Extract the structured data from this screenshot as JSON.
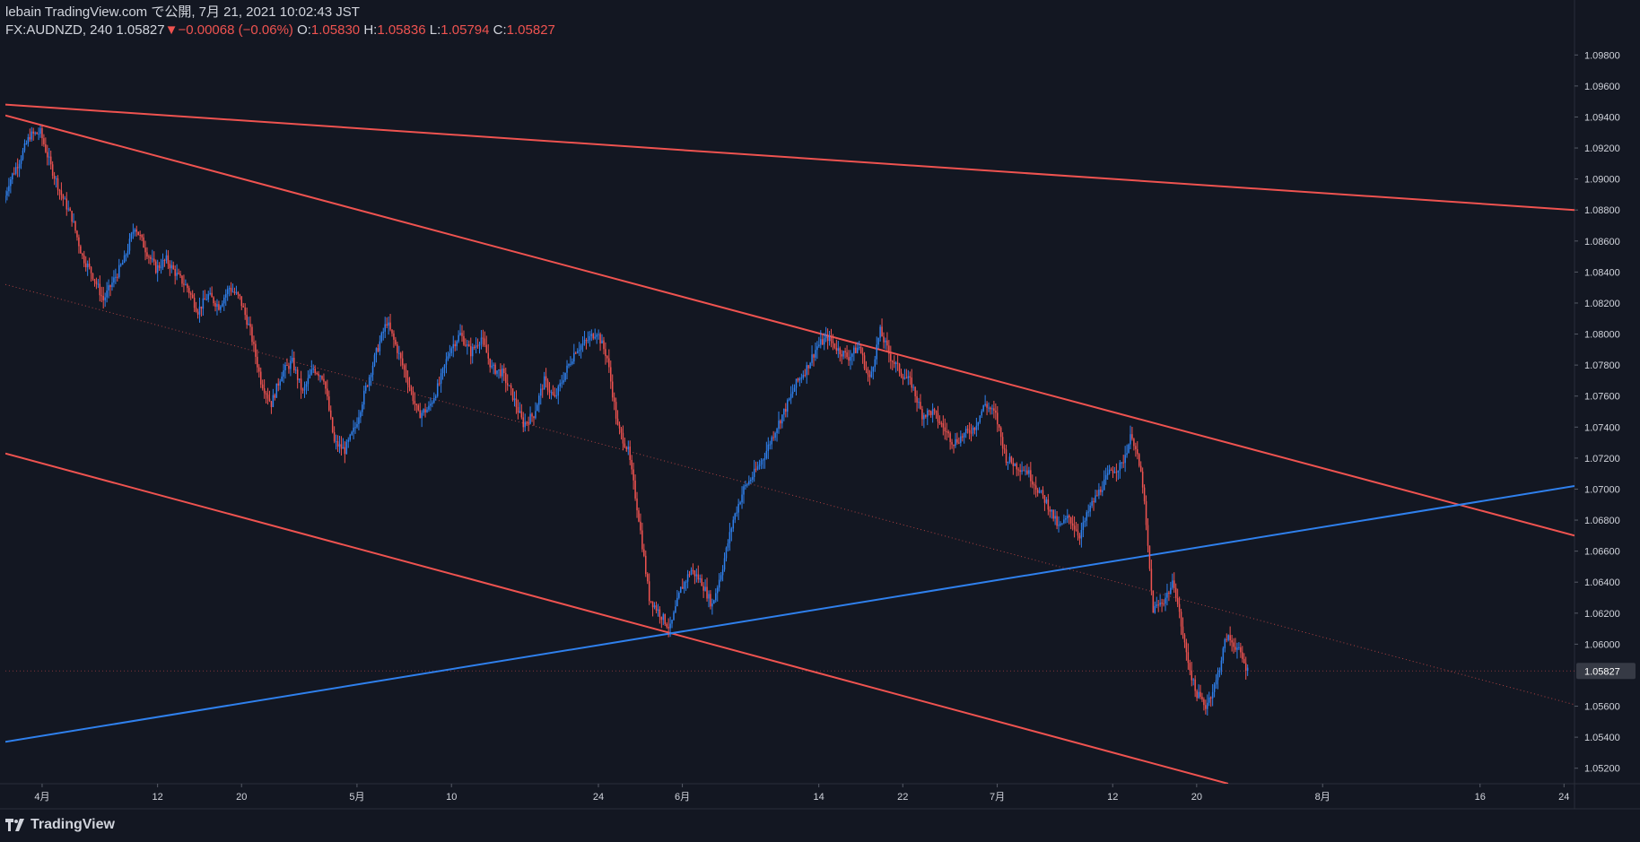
{
  "header": {
    "published": "lebain TradingView.com で公開, 7月 21, 2021 10:02:43 JST",
    "symbol": "FX:AUDNZD, 240",
    "last": "1.05827",
    "arrow": "▼",
    "change": "−0.00068 (−0.06%)",
    "o_label": "O:",
    "o_value": "1.05830",
    "h_label": "H:",
    "h_value": "1.05836",
    "l_label": "L:",
    "l_value": "1.05794",
    "c_label": "C:",
    "c_value": "1.05827"
  },
  "footer": {
    "brand": "TradingView"
  },
  "colors": {
    "background": "#131722",
    "up": "#2f80ed",
    "down": "#ef5350",
    "trendline_red": "#ef5350",
    "trendline_blue": "#2f80ed",
    "text": "#d1d4dc",
    "price_tag_bg": "#363a45"
  },
  "chart_data": {
    "type": "candlestick",
    "symbol": "FX:AUDNZD",
    "interval": "240",
    "y_axis": {
      "min": 1.051,
      "max": 1.099,
      "ticks": [
        "1.09800",
        "1.09600",
        "1.09400",
        "1.09200",
        "1.09000",
        "1.08800",
        "1.08600",
        "1.08400",
        "1.08200",
        "1.08000",
        "1.07800",
        "1.07600",
        "1.07400",
        "1.07200",
        "1.07000",
        "1.06800",
        "1.06600",
        "1.06400",
        "1.06200",
        "1.06000",
        "1.05600",
        "1.05400",
        "1.05200"
      ],
      "current_price_label": "1.05827",
      "current_price": 1.05827
    },
    "x_axis": {
      "range_days": [
        -3.5,
        146
      ],
      "ticks": [
        {
          "label": "4月",
          "day": 0
        },
        {
          "label": "12",
          "day": 11
        },
        {
          "label": "20",
          "day": 19
        },
        {
          "label": "5月",
          "day": 30
        },
        {
          "label": "10",
          "day": 39
        },
        {
          "label": "24",
          "day": 53
        },
        {
          "label": "6月",
          "day": 61
        },
        {
          "label": "14",
          "day": 74
        },
        {
          "label": "22",
          "day": 82
        },
        {
          "label": "7月",
          "day": 91
        },
        {
          "label": "12",
          "day": 102
        },
        {
          "label": "20",
          "day": 110
        },
        {
          "label": "8月",
          "day": 122
        },
        {
          "label": "16",
          "day": 137
        },
        {
          "label": "24",
          "day": 145
        }
      ]
    },
    "price_path": [
      [
        -3.5,
        1.0885
      ],
      [
        -3,
        1.0898
      ],
      [
        -2,
        1.0912
      ],
      [
        -1,
        1.0928
      ],
      [
        0,
        1.093
      ],
      [
        1,
        1.0908
      ],
      [
        2,
        1.089
      ],
      [
        3,
        1.0875
      ],
      [
        4,
        1.085
      ],
      [
        5,
        1.0838
      ],
      [
        6,
        1.0822
      ],
      [
        7,
        1.0835
      ],
      [
        8,
        1.0848
      ],
      [
        9,
        1.087
      ],
      [
        10,
        1.0855
      ],
      [
        11,
        1.0842
      ],
      [
        12,
        1.0848
      ],
      [
        13,
        1.0838
      ],
      [
        14,
        1.083
      ],
      [
        15,
        1.0815
      ],
      [
        16,
        1.0825
      ],
      [
        17,
        1.0818
      ],
      [
        18,
        1.083
      ],
      [
        19,
        1.0823
      ],
      [
        20,
        1.0802
      ],
      [
        21,
        1.077
      ],
      [
        22,
        1.0755
      ],
      [
        23,
        1.0775
      ],
      [
        24,
        1.0782
      ],
      [
        25,
        1.0762
      ],
      [
        26,
        1.0778
      ],
      [
        27,
        1.0772
      ],
      [
        28,
        1.073
      ],
      [
        29,
        1.0725
      ],
      [
        30,
        1.074
      ],
      [
        31,
        1.0765
      ],
      [
        32,
        1.0788
      ],
      [
        33,
        1.0808
      ],
      [
        34,
        1.079
      ],
      [
        35,
        1.077
      ],
      [
        36,
        1.0748
      ],
      [
        37,
        1.0752
      ],
      [
        38,
        1.0768
      ],
      [
        39,
        1.079
      ],
      [
        40,
        1.08
      ],
      [
        41,
        1.0788
      ],
      [
        42,
        1.0798
      ],
      [
        43,
        1.0778
      ],
      [
        44,
        1.0775
      ],
      [
        45,
        1.076
      ],
      [
        46,
        1.0742
      ],
      [
        47,
        1.0748
      ],
      [
        48,
        1.077
      ],
      [
        49,
        1.0758
      ],
      [
        50,
        1.0775
      ],
      [
        51,
        1.079
      ],
      [
        52,
        1.0795
      ],
      [
        53,
        1.0802
      ],
      [
        54,
        1.0785
      ],
      [
        55,
        1.074
      ],
      [
        56,
        1.0725
      ],
      [
        57,
        1.0682
      ],
      [
        58,
        1.063
      ],
      [
        59,
        1.062
      ],
      [
        60,
        1.061
      ],
      [
        61,
        1.0635
      ],
      [
        62,
        1.0648
      ],
      [
        63,
        1.064
      ],
      [
        64,
        1.0625
      ],
      [
        65,
        1.065
      ],
      [
        66,
        1.068
      ],
      [
        67,
        1.07
      ],
      [
        68,
        1.071
      ],
      [
        69,
        1.0722
      ],
      [
        70,
        1.0738
      ],
      [
        71,
        1.0752
      ],
      [
        72,
        1.0768
      ],
      [
        73,
        1.0778
      ],
      [
        74,
        1.0792
      ],
      [
        75,
        1.0798
      ],
      [
        76,
        1.079
      ],
      [
        77,
        1.0785
      ],
      [
        78,
        1.0792
      ],
      [
        79,
        1.077
      ],
      [
        80,
        1.0802
      ],
      [
        81,
        1.0785
      ],
      [
        82,
        1.0775
      ],
      [
        83,
        1.0768
      ],
      [
        84,
        1.0748
      ],
      [
        85,
        1.075
      ],
      [
        86,
        1.074
      ],
      [
        87,
        1.073
      ],
      [
        88,
        1.0735
      ],
      [
        89,
        1.074
      ],
      [
        90,
        1.0755
      ],
      [
        91,
        1.0748
      ],
      [
        92,
        1.072
      ],
      [
        93,
        1.0715
      ],
      [
        94,
        1.0712
      ],
      [
        95,
        1.07
      ],
      [
        96,
        1.069
      ],
      [
        97,
        1.0675
      ],
      [
        98,
        1.0682
      ],
      [
        99,
        1.067
      ],
      [
        100,
        1.0688
      ],
      [
        101,
        1.07
      ],
      [
        102,
        1.0712
      ],
      [
        103,
        1.0715
      ],
      [
        104,
        1.0736
      ],
      [
        105,
        1.0705
      ],
      [
        106,
        1.0622
      ],
      [
        107,
        1.0628
      ],
      [
        108,
        1.064
      ],
      [
        109,
        1.06
      ],
      [
        110,
        1.057
      ],
      [
        111,
        1.056
      ],
      [
        112,
        1.0575
      ],
      [
        113,
        1.0605
      ],
      [
        114,
        1.0598
      ],
      [
        115,
        1.0583
      ]
    ],
    "trendlines": [
      {
        "color": "red",
        "style": "solid",
        "points": [
          [
            -3.5,
            1.0948
          ],
          [
            146,
            1.088
          ]
        ]
      },
      {
        "color": "red",
        "style": "solid",
        "points": [
          [
            -3.5,
            1.0941
          ],
          [
            146,
            1.067
          ]
        ]
      },
      {
        "color": "red",
        "style": "solid",
        "points": [
          [
            -3.5,
            1.0723
          ],
          [
            113,
            1.051
          ]
        ]
      },
      {
        "color": "blue",
        "style": "solid",
        "points": [
          [
            -3.5,
            1.0537
          ],
          [
            146,
            1.0702
          ]
        ]
      },
      {
        "color": "red",
        "style": "dotted",
        "points": [
          [
            -3.5,
            1.0832
          ],
          [
            146,
            1.0561
          ]
        ]
      }
    ]
  }
}
